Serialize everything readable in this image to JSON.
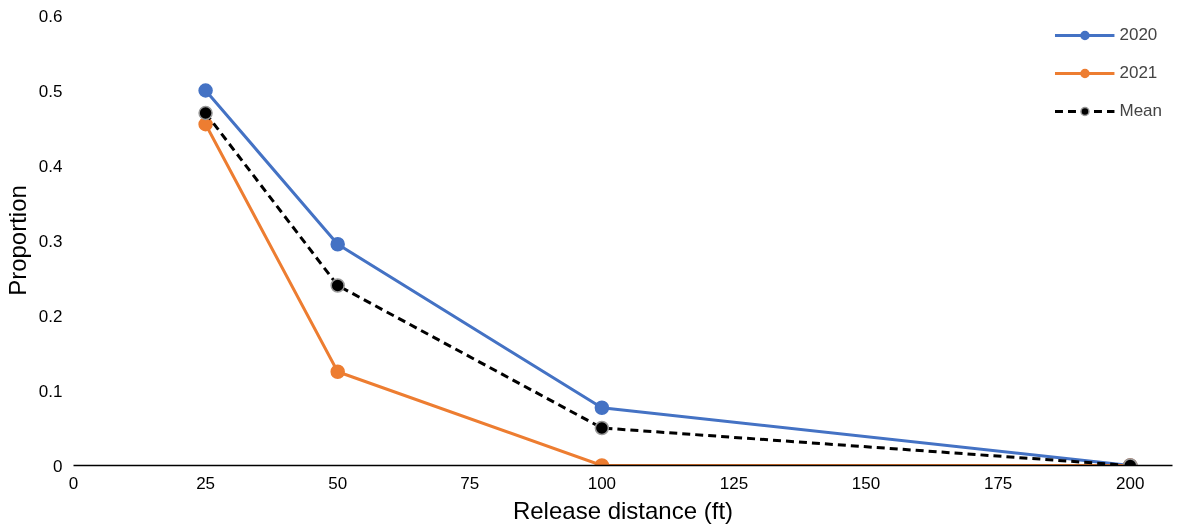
{
  "chart_data": {
    "type": "line",
    "xlabel": "Release distance (ft)",
    "ylabel": "Proportion",
    "x": [
      25,
      50,
      100,
      200
    ],
    "series": [
      {
        "name": "2020",
        "color": "#4472c4",
        "values": [
          0.5,
          0.295,
          0.077,
          0
        ],
        "line_style": "solid"
      },
      {
        "name": "2021",
        "color": "#ed7d31",
        "values": [
          0.455,
          0.125,
          0,
          0
        ],
        "line_style": "solid"
      },
      {
        "name": "Mean",
        "color": "#000000",
        "values": [
          0.47,
          0.24,
          0.05,
          0
        ],
        "line_style": "dashed"
      }
    ],
    "marker": "circle",
    "xlim": [
      0,
      208
    ],
    "ylim": [
      0,
      0.6
    ],
    "xticks": [
      0,
      25,
      50,
      75,
      100,
      125,
      150,
      175,
      200
    ],
    "yticks": [
      0,
      0.1,
      0.2,
      0.3,
      0.4,
      0.5,
      0.6
    ],
    "grid": false,
    "legend": "top right"
  }
}
